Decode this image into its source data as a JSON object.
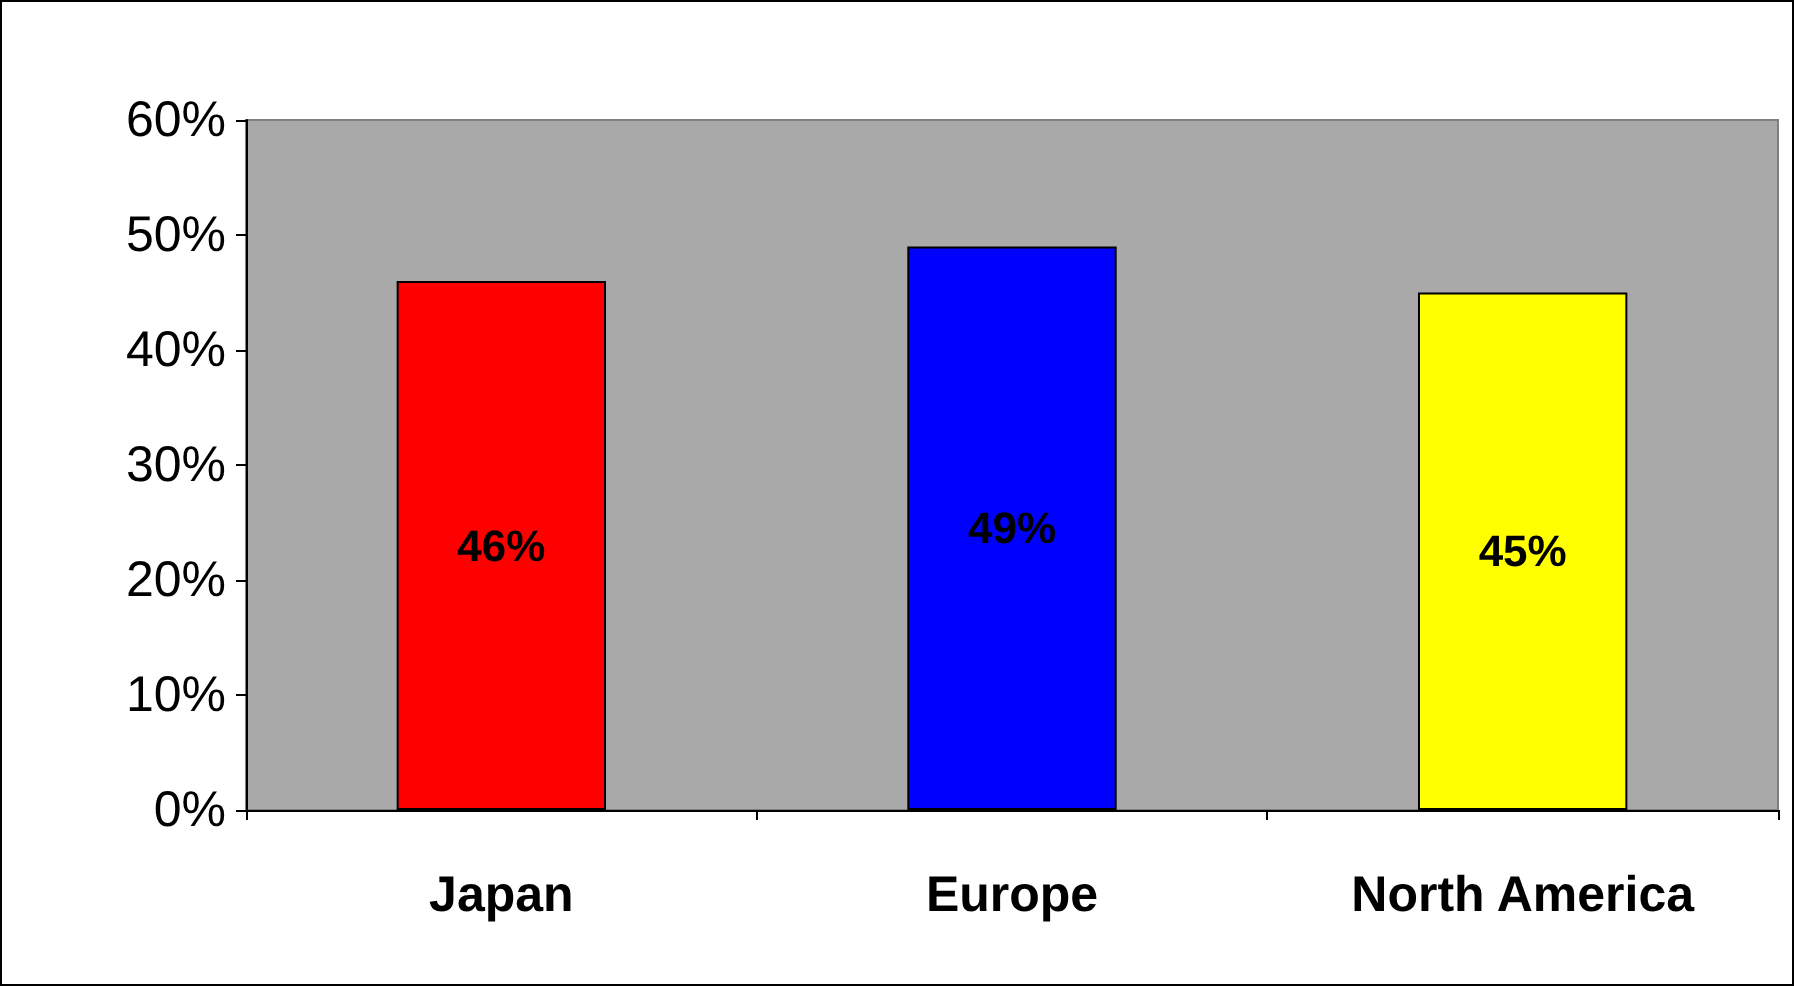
{
  "chart_data": {
    "type": "bar",
    "categories": [
      "Japan",
      "Europe",
      "North America"
    ],
    "values": [
      46,
      49,
      45
    ],
    "colors": [
      "#ff0000",
      "#0000ff",
      "#ffff00"
    ],
    "value_labels": [
      "46%",
      "49%",
      "45%"
    ],
    "ylim": [
      0,
      60
    ],
    "yticks": [
      {
        "value": 0,
        "label": "0%"
      },
      {
        "value": 10,
        "label": "10%"
      },
      {
        "value": 20,
        "label": "20%"
      },
      {
        "value": 30,
        "label": "30%"
      },
      {
        "value": 40,
        "label": "40%"
      },
      {
        "value": 50,
        "label": "50%"
      },
      {
        "value": 60,
        "label": "60%"
      }
    ],
    "grid": false
  }
}
